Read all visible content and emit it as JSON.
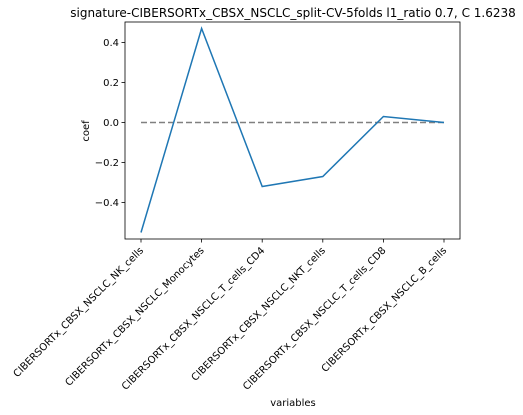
{
  "chart_data": {
    "type": "line",
    "title": "signature-CIBERSORTx_CBSX_NSCLC_split-CV-5folds l1_ratio 0.7, C 1.6238",
    "xlabel": "variables",
    "ylabel": "coef",
    "categories": [
      "CIBERSORTx_CBSX_NSCLC_NK_cells",
      "CIBERSORTx_CBSX_NSCLC_Monocytes",
      "CIBERSORTx_CBSX_NSCLC_T_cells_CD4",
      "CIBERSORTx_CBSX_NSCLC_NKT_cells",
      "CIBERSORTx_CBSX_NSCLC_T_cells_CD8",
      "CIBERSORTx_CBSX_NSCLC_B_cells"
    ],
    "series": [
      {
        "values": [
          -0.55,
          0.47,
          -0.32,
          -0.27,
          0.03,
          0.0
        ],
        "color": "#1f77b4"
      }
    ],
    "reference_line": {
      "y": 0.0,
      "style": "dashed",
      "color": "#808080"
    },
    "yticks": [
      -0.4,
      -0.2,
      0.0,
      0.2,
      0.4
    ],
    "ytick_labels": [
      "−0.4",
      "−0.2",
      "0.0",
      "0.2",
      "0.4"
    ],
    "ylim": [
      -0.5825,
      0.5025
    ],
    "grid": false,
    "legend": "none"
  }
}
